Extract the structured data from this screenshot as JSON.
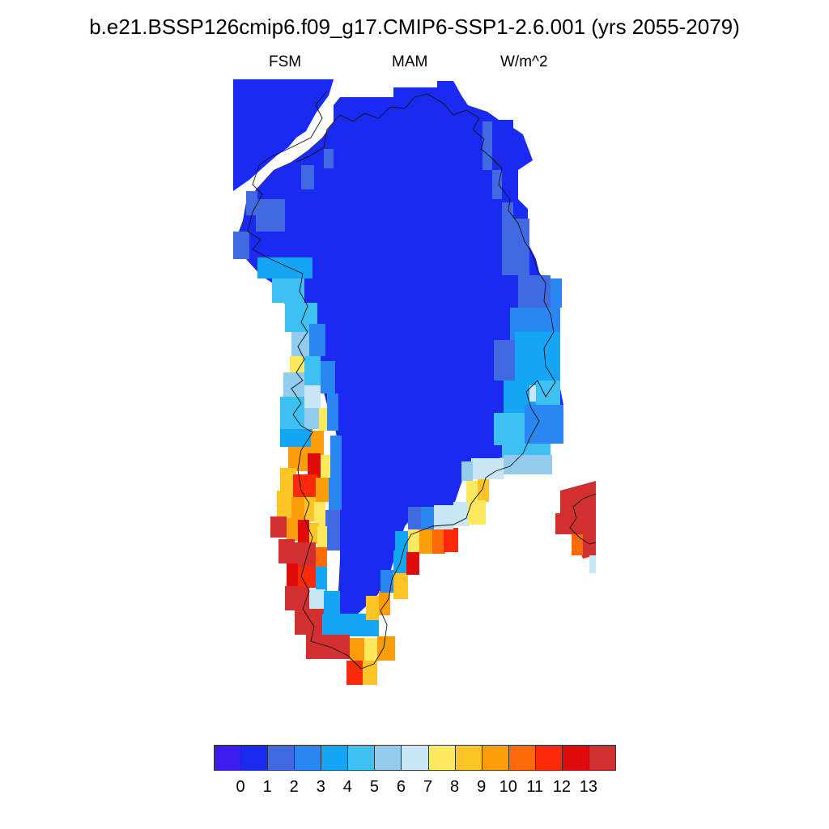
{
  "title": "b.e21.BSSP126cmip6.f09_g17.CMIP6-SSP1-2.6.001 (yrs 2055-2079)",
  "subtitle_left": "FSM",
  "subtitle_center": "MAM",
  "subtitle_right": "W/m^2",
  "colorbar": {
    "colors": [
      "#3d1cee",
      "#1a2af0",
      "#4169e1",
      "#2a86f0",
      "#14a5f5",
      "#3fc0f2",
      "#92cbec",
      "#c9e6f7",
      "#fde960",
      "#fcc425",
      "#fc9d0b",
      "#fc6a0a",
      "#fc2a0a",
      "#e00b0b",
      "#d22f30"
    ],
    "labels": [
      "0",
      "1",
      "2",
      "3",
      "4",
      "5",
      "6",
      "7",
      "8",
      "9",
      "10",
      "11",
      "12",
      "13"
    ]
  },
  "chart_data": {
    "type": "heatmap",
    "title": "b.e21.BSSP126cmip6.f09_g17.CMIP6-SSP1-2.6.001 (yrs 2055-2079)",
    "variable": "FSM",
    "season": "MAM",
    "units": "W/m^2",
    "region": "Greenland",
    "color_levels": [
      0,
      1,
      2,
      3,
      4,
      5,
      6,
      7,
      8,
      9,
      10,
      11,
      12,
      13
    ],
    "interior_value_class": "0-1",
    "margin_value_classes": {
      "north_and_northeast": "1-3",
      "east_coast": "2-7",
      "west_coast": "3-8",
      "southwest_coast": "8-13+",
      "south_tip": "8-13+",
      "iceland_fragment": "10-13+"
    }
  }
}
